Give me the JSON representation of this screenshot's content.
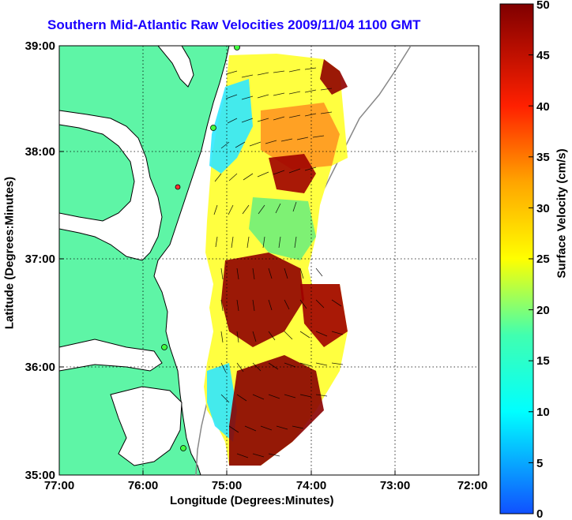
{
  "title": "Southern Mid-Atlantic Raw Velocities 2009/11/04 1100 GMT",
  "xlabel": "Longitude (Degrees:Minutes)",
  "ylabel": "Latitude (Degrees:Minutes)",
  "colorbar_label": "Surface Velocity (cm/s)",
  "x_ticks": [
    "77:00",
    "76:00",
    "75:00",
    "74:00",
    "73:00",
    "72:00"
  ],
  "y_ticks": [
    "39:00",
    "38:00",
    "37:00",
    "36:00",
    "35:00"
  ],
  "colorbar_ticks": [
    "50",
    "45",
    "40",
    "35",
    "30",
    "25",
    "20",
    "15",
    "10",
    "5",
    "0"
  ],
  "colors": {
    "land": "#5ef5a6",
    "coast": "#000000",
    "title": "#1a00ff"
  }
}
